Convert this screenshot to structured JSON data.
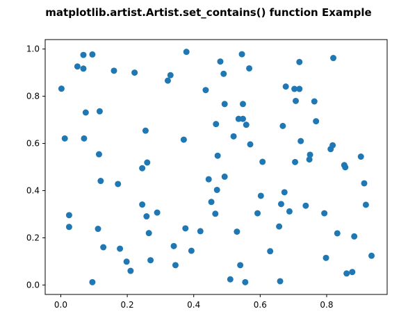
{
  "chart_data": {
    "type": "scatter",
    "title": "matplotlib.artist.Artist.set_contains() function Example",
    "xlabel": "",
    "ylabel": "",
    "xlim": [
      -0.047,
      0.982
    ],
    "ylim": [
      -0.04,
      1.04
    ],
    "xticks": [
      0.0,
      0.2,
      0.4,
      0.6,
      0.8
    ],
    "xtick_labels": [
      "0.0",
      "0.2",
      "0.4",
      "0.6",
      "0.8"
    ],
    "yticks": [
      0.0,
      0.2,
      0.4,
      0.6,
      0.8,
      1.0
    ],
    "ytick_labels": [
      "0.0",
      "0.2",
      "0.4",
      "0.6",
      "0.8",
      "1.0"
    ],
    "grid": false,
    "marker_color": "#1f77b4",
    "points": [
      [
        0.002,
        0.832
      ],
      [
        0.012,
        0.621
      ],
      [
        0.025,
        0.296
      ],
      [
        0.025,
        0.246
      ],
      [
        0.05,
        0.926
      ],
      [
        0.068,
        0.975
      ],
      [
        0.068,
        0.917
      ],
      [
        0.07,
        0.621
      ],
      [
        0.075,
        0.731
      ],
      [
        0.095,
        0.977
      ],
      [
        0.095,
        0.012
      ],
      [
        0.112,
        0.238
      ],
      [
        0.115,
        0.554
      ],
      [
        0.117,
        0.736
      ],
      [
        0.12,
        0.441
      ],
      [
        0.128,
        0.16
      ],
      [
        0.16,
        0.908
      ],
      [
        0.172,
        0.428
      ],
      [
        0.178,
        0.154
      ],
      [
        0.198,
        0.099
      ],
      [
        0.21,
        0.06
      ],
      [
        0.222,
        0.9
      ],
      [
        0.245,
        0.341
      ],
      [
        0.245,
        0.495
      ],
      [
        0.255,
        0.654
      ],
      [
        0.258,
        0.291
      ],
      [
        0.26,
        0.519
      ],
      [
        0.265,
        0.22
      ],
      [
        0.27,
        0.105
      ],
      [
        0.29,
        0.307
      ],
      [
        0.322,
        0.866
      ],
      [
        0.33,
        0.889
      ],
      [
        0.34,
        0.165
      ],
      [
        0.345,
        0.084
      ],
      [
        0.37,
        0.616
      ],
      [
        0.375,
        0.24
      ],
      [
        0.378,
        0.988
      ],
      [
        0.393,
        0.145
      ],
      [
        0.42,
        0.228
      ],
      [
        0.436,
        0.826
      ],
      [
        0.445,
        0.448
      ],
      [
        0.453,
        0.352
      ],
      [
        0.465,
        0.302
      ],
      [
        0.467,
        0.682
      ],
      [
        0.47,
        0.403
      ],
      [
        0.472,
        0.548
      ],
      [
        0.48,
        0.947
      ],
      [
        0.49,
        0.895
      ],
      [
        0.493,
        0.767
      ],
      [
        0.493,
        0.459
      ],
      [
        0.51,
        0.024
      ],
      [
        0.52,
        0.63
      ],
      [
        0.53,
        0.226
      ],
      [
        0.535,
        0.704
      ],
      [
        0.54,
        0.084
      ],
      [
        0.545,
        0.978
      ],
      [
        0.548,
        0.767
      ],
      [
        0.548,
        0.704
      ],
      [
        0.555,
        0.012
      ],
      [
        0.558,
        0.679
      ],
      [
        0.567,
        0.918
      ],
      [
        0.57,
        0.596
      ],
      [
        0.592,
        0.304
      ],
      [
        0.602,
        0.378
      ],
      [
        0.607,
        0.522
      ],
      [
        0.63,
        0.143
      ],
      [
        0.657,
        0.248
      ],
      [
        0.66,
        0.016
      ],
      [
        0.663,
        0.343
      ],
      [
        0.668,
        0.674
      ],
      [
        0.673,
        0.393
      ],
      [
        0.677,
        0.841
      ],
      [
        0.688,
        0.312
      ],
      [
        0.703,
        0.831
      ],
      [
        0.705,
        0.521
      ],
      [
        0.707,
        0.78
      ],
      [
        0.718,
        0.945
      ],
      [
        0.718,
        0.831
      ],
      [
        0.722,
        0.61
      ],
      [
        0.737,
        0.336
      ],
      [
        0.748,
        0.532
      ],
      [
        0.75,
        0.552
      ],
      [
        0.763,
        0.778
      ],
      [
        0.768,
        0.694
      ],
      [
        0.793,
        0.304
      ],
      [
        0.798,
        0.115
      ],
      [
        0.812,
        0.576
      ],
      [
        0.818,
        0.592
      ],
      [
        0.82,
        0.962
      ],
      [
        0.832,
        0.219
      ],
      [
        0.853,
        0.508
      ],
      [
        0.856,
        0.499
      ],
      [
        0.86,
        0.049
      ],
      [
        0.877,
        0.055
      ],
      [
        0.883,
        0.206
      ],
      [
        0.903,
        0.544
      ],
      [
        0.913,
        0.431
      ],
      [
        0.918,
        0.34
      ],
      [
        0.935,
        0.124
      ]
    ]
  }
}
